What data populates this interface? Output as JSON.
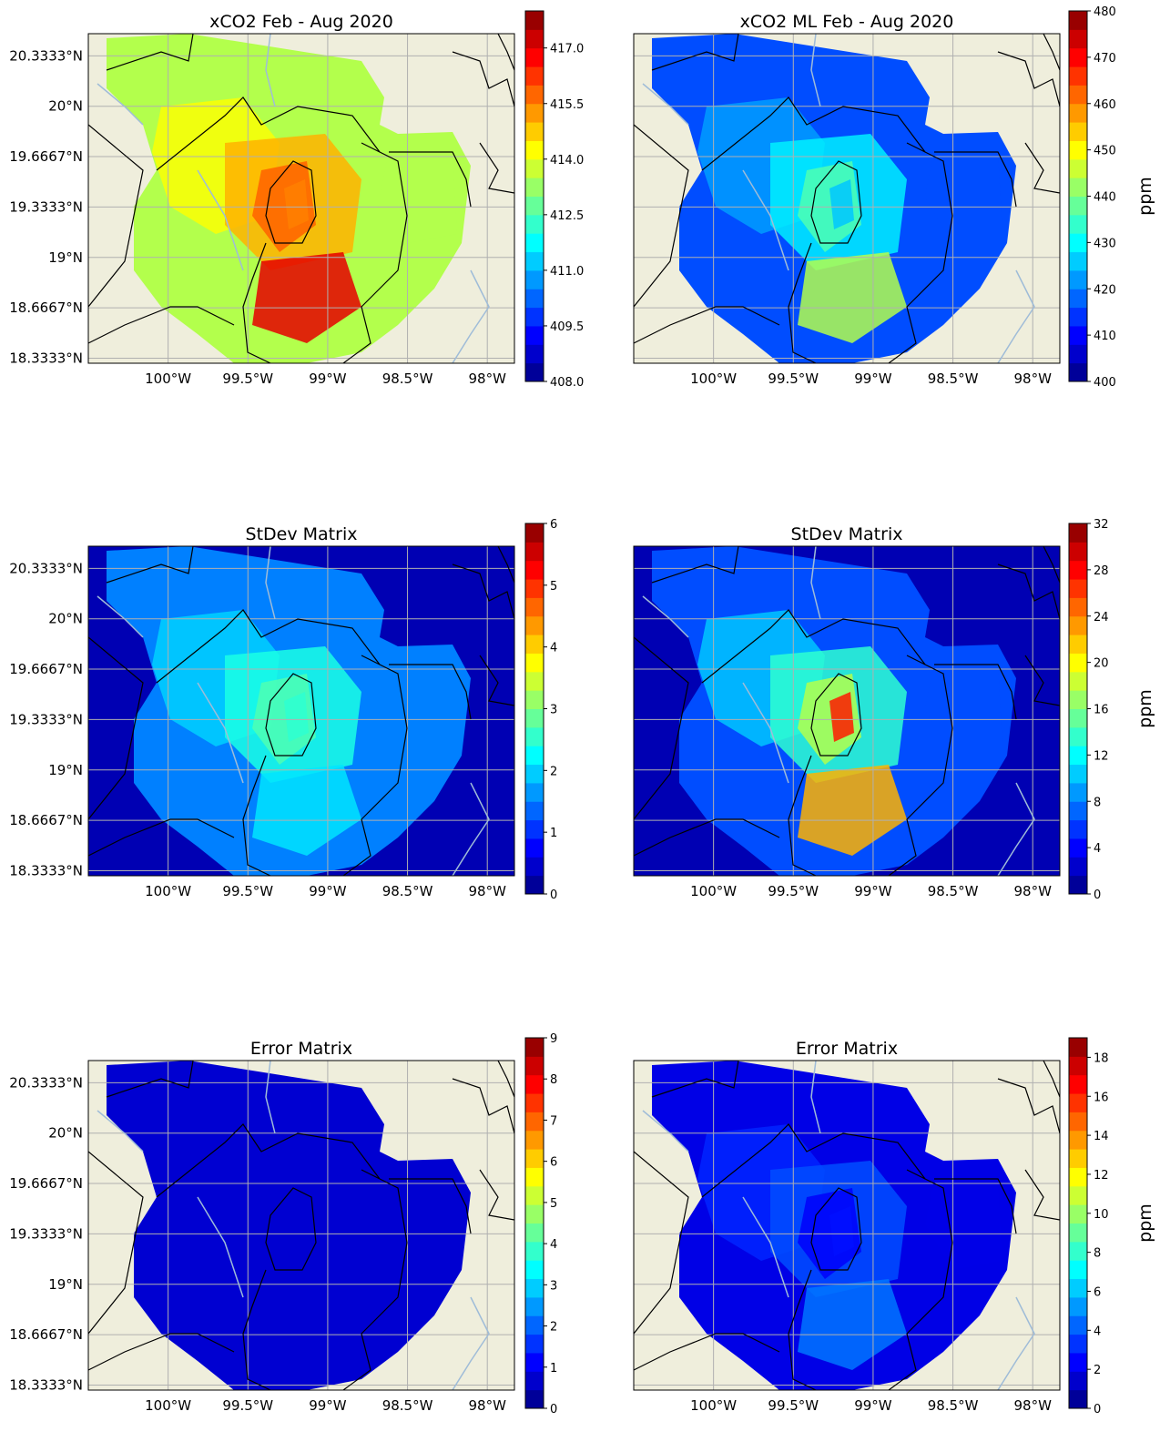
{
  "figure": {
    "x_tick_labels": [
      "100°W",
      "99.5°W",
      "99°W",
      "98.5°W",
      "98°W"
    ],
    "y_tick_labels": [
      "20.3333°N",
      "20°N",
      "19.6667°N",
      "19.3333°N",
      "19°N",
      "18.6667°N",
      "18.3333°N"
    ]
  },
  "chart_data": [
    {
      "type": "heatmap",
      "title": "xCO2 Feb - Aug 2020",
      "colorbar": {
        "label": "",
        "vmin": 408.0,
        "vmax": 418.0,
        "ticks": [
          408.0,
          409.5,
          411.0,
          412.5,
          414.0,
          415.5,
          417.0
        ],
        "tick_labels": [
          "408.0",
          "409.5",
          "411.0",
          "412.5",
          "414.0",
          "415.5",
          "417.0"
        ]
      },
      "colors": {
        "background": "#0000a0"
      },
      "regions": [
        {
          "level": 0.55,
          "note": "domain"
        },
        {
          "level": 0.62
        },
        {
          "level": 0.7
        },
        {
          "level": 0.78
        },
        {
          "level": 0.9
        },
        {
          "level": 0.75
        }
      ]
    },
    {
      "type": "heatmap",
      "title": "xCO2 ML Feb - Aug 2020",
      "colorbar": {
        "label": "ppm",
        "vmin": 400,
        "vmax": 480,
        "ticks": [
          400,
          410,
          420,
          430,
          440,
          450,
          460,
          470,
          480
        ],
        "tick_labels": [
          "400",
          "410",
          "420",
          "430",
          "440",
          "450",
          "460",
          "470",
          "480"
        ]
      },
      "regions": [
        {
          "level": 0.2
        },
        {
          "level": 0.28
        },
        {
          "level": 0.36
        },
        {
          "level": 0.45
        },
        {
          "level": 0.55
        },
        {
          "level": 0.32
        }
      ]
    },
    {
      "type": "heatmap",
      "title": "StDev Matrix",
      "colorbar": {
        "label": "",
        "vmin": 0,
        "vmax": 6,
        "ticks": [
          0,
          1,
          2,
          3,
          4,
          5,
          6
        ],
        "tick_labels": [
          "0",
          "1",
          "2",
          "3",
          "4",
          "5",
          "6"
        ]
      },
      "regions": [
        {
          "level": 0.25
        },
        {
          "level": 0.33
        },
        {
          "level": 0.4
        },
        {
          "level": 0.45
        },
        {
          "level": 0.35
        },
        {
          "level": 0.42
        }
      ]
    },
    {
      "type": "heatmap",
      "title": "StDev Matrix",
      "colorbar": {
        "label": "ppm",
        "vmin": 0,
        "vmax": 32,
        "ticks": [
          0,
          4,
          8,
          12,
          16,
          20,
          24,
          28,
          32
        ],
        "tick_labels": [
          "0",
          "4",
          "8",
          "12",
          "16",
          "20",
          "24",
          "28",
          "32"
        ]
      },
      "regions": [
        {
          "level": 0.2
        },
        {
          "level": 0.32
        },
        {
          "level": 0.42
        },
        {
          "level": 0.55
        },
        {
          "level": 0.7
        },
        {
          "level": 0.85
        }
      ]
    },
    {
      "type": "heatmap",
      "title": "Error Matrix",
      "colorbar": {
        "label": "",
        "vmin": 0,
        "vmax": 9,
        "ticks": [
          0,
          1,
          2,
          3,
          4,
          5,
          6,
          7,
          8,
          9
        ],
        "tick_labels": [
          "0",
          "1",
          "2",
          "3",
          "4",
          "5",
          "6",
          "7",
          "8",
          "9"
        ]
      },
      "regions": [
        {
          "level": 0.08
        },
        {
          "level": 0.08
        },
        {
          "level": 0.08
        },
        {
          "level": 0.08
        },
        {
          "level": 0.08
        },
        {
          "level": 0.08
        }
      ]
    },
    {
      "type": "heatmap",
      "title": "Error Matrix",
      "colorbar": {
        "label": "ppm",
        "vmin": 0,
        "vmax": 19,
        "ticks": [
          0,
          2,
          4,
          6,
          8,
          10,
          12,
          14,
          16,
          18
        ],
        "tick_labels": [
          "0",
          "2",
          "4",
          "6",
          "8",
          "10",
          "12",
          "14",
          "16",
          "18"
        ]
      },
      "regions": [
        {
          "level": 0.1
        },
        {
          "level": 0.16
        },
        {
          "level": 0.2
        },
        {
          "level": 0.12
        },
        {
          "level": 0.24
        },
        {
          "level": 0.14
        }
      ]
    }
  ]
}
